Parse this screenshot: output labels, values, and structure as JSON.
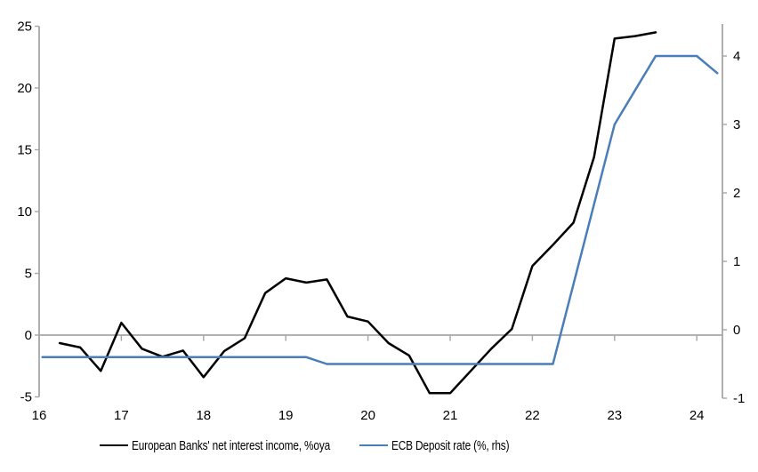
{
  "chart_data": {
    "type": "line",
    "title": "",
    "background": "#ffffff",
    "axis_color": "#a6a6a6",
    "zero_line_color": "#a6a6a6",
    "x_axis": {
      "ticks": [
        16,
        17,
        18,
        19,
        20,
        21,
        22,
        23,
        24
      ],
      "range": [
        16,
        24.33
      ],
      "tick_style": "short ticks hanging below the zero line"
    },
    "left_axis": {
      "ticks": [
        25,
        20,
        15,
        10,
        5,
        0,
        -5
      ],
      "range": [
        -5,
        25
      ]
    },
    "right_axis": {
      "ticks": [
        4,
        3,
        2,
        1,
        0,
        -1
      ],
      "range": [
        -1,
        4.5
      ]
    },
    "grid": "zero line only",
    "legend_position": "bottom",
    "series": [
      {
        "name": "European Banks' net interest income, %oya",
        "axis": "left",
        "color": "#000000",
        "points": [
          [
            16.25,
            -0.65
          ],
          [
            16.5,
            -1.0
          ],
          [
            16.75,
            -2.9
          ],
          [
            17.0,
            1.0
          ],
          [
            17.25,
            -1.1
          ],
          [
            17.5,
            -1.75
          ],
          [
            17.75,
            -1.25
          ],
          [
            18.0,
            -3.4
          ],
          [
            18.25,
            -1.3
          ],
          [
            18.5,
            -0.25
          ],
          [
            18.75,
            3.4
          ],
          [
            19.0,
            4.6
          ],
          [
            19.25,
            4.25
          ],
          [
            19.5,
            4.5
          ],
          [
            19.75,
            1.5
          ],
          [
            20.0,
            1.1
          ],
          [
            20.25,
            -0.65
          ],
          [
            20.5,
            -1.65
          ],
          [
            20.75,
            -4.7
          ],
          [
            21.0,
            -4.7
          ],
          [
            21.25,
            -2.9
          ],
          [
            21.5,
            -1.1
          ],
          [
            21.75,
            0.5
          ],
          [
            22.0,
            5.6
          ],
          [
            22.25,
            7.3
          ],
          [
            22.5,
            9.1
          ],
          [
            22.75,
            14.4
          ],
          [
            23.0,
            24.0
          ],
          [
            23.25,
            24.2
          ],
          [
            23.5,
            24.5
          ]
        ]
      },
      {
        "name": "ECB Deposit rate (%, rhs)",
        "axis": "right",
        "color": "#4a7eb8",
        "points": [
          [
            16.04,
            -0.4
          ],
          [
            19.25,
            -0.4
          ],
          [
            19.5,
            -0.5
          ],
          [
            22.25,
            -0.5
          ],
          [
            23.0,
            3.0
          ],
          [
            23.5,
            4.0
          ],
          [
            24.0,
            4.0
          ],
          [
            24.25,
            3.75
          ]
        ]
      }
    ]
  }
}
